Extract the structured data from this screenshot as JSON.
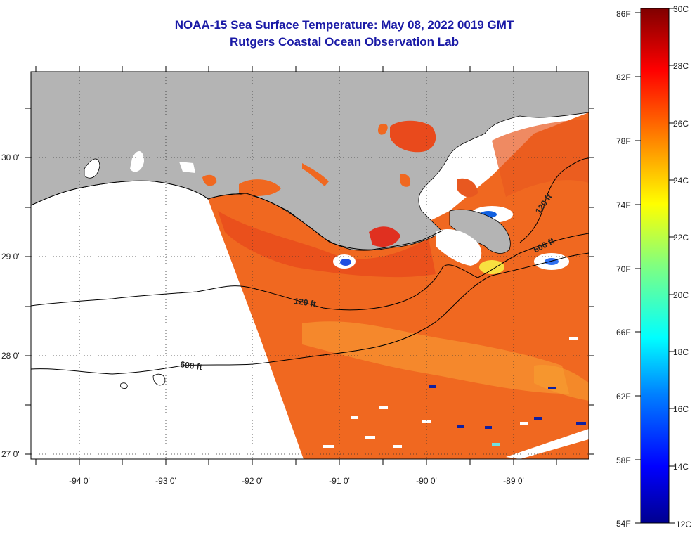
{
  "title": "NOAA-15 Sea Surface Temperature:  May 08, 2022 0019 GMT",
  "subtitle": "Rutgers Coastal Ocean Observation Lab",
  "axes": {
    "x_ticks": [
      "-94 0'",
      "-93 0'",
      "-92 0'",
      "-91 0'",
      "-90 0'",
      "-89 0'"
    ],
    "y_ticks": [
      "30 0'",
      "29 0'",
      "28 0'",
      "27 0'"
    ]
  },
  "contours": [
    {
      "label": "120 ft"
    },
    {
      "label": "600 ft"
    },
    {
      "label": "120 ft"
    },
    {
      "label": "600 ft"
    }
  ],
  "colorbar": {
    "f_labels": [
      "86F",
      "82F",
      "78F",
      "74F",
      "70F",
      "66F",
      "62F",
      "58F",
      "54F"
    ],
    "c_labels": [
      "30C",
      "28C",
      "26C",
      "24C",
      "22C",
      "20C",
      "18C",
      "16C",
      "14C",
      "12C"
    ],
    "range_c": [
      12,
      30
    ]
  },
  "colors": {
    "land": "#b4b4b4",
    "title": "#1a1aa6",
    "sst_main": "#f06820"
  }
}
